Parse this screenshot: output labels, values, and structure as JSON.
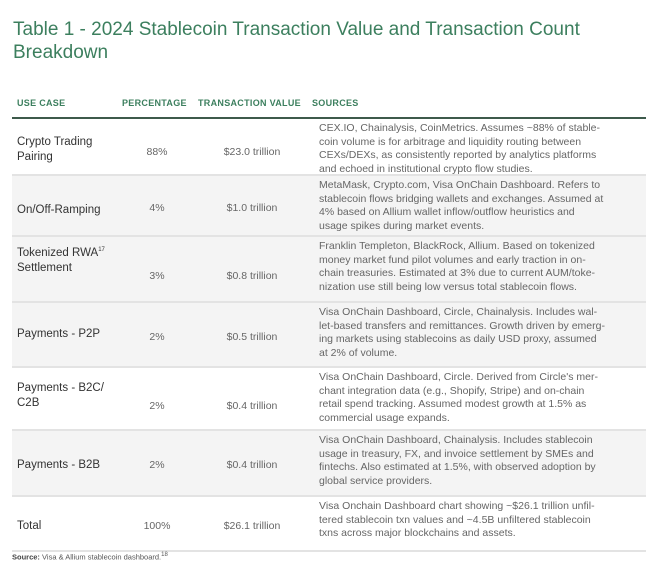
{
  "title": "Table 1 - 2024 Stablecoin Transaction Value and Transaction Count Breakdown",
  "headers": [
    "USE CASE",
    "PERCENTAGE",
    "TRANSACTION VALUE",
    "SOURCES"
  ],
  "rows": [
    {
      "use_case": "Crypto Trading\nPairing",
      "sup": "",
      "percentage": "88%",
      "value": "$23.0 trillion",
      "sources": "CEX.IO, Chainalysis, CoinMetrics. Assumes ~88% of stable-\ncoin volume is for arbitrage and liquidity routing between\nCEXs/DEXs, as consistently reported by analytics platforms\nand echoed in institutional crypto flow studies."
    },
    {
      "use_case": "On/Off-Ramping",
      "sup": "",
      "percentage": "4%",
      "value": "$1.0 trillion",
      "sources": "MetaMask, Crypto.com, Visa OnChain Dashboard. Refers to\nstablecoin flows bridging wallets and exchanges. Assumed at\n4% based on Allium wallet inflow/outflow heuristics and\nusage spikes during market events."
    },
    {
      "use_case": "Tokenized RWA",
      "sup": "17",
      "use_case2": "Settlement",
      "percentage": "3%",
      "value": "$0.8 trillion",
      "sources": "Franklin Templeton, BlackRock, Allium. Based on tokenized\nmoney market fund pilot volumes and early traction in on-\nchain treasuries. Estimated at 3% due to current AUM/toke-\nnization use still being low versus total stablecoin flows."
    },
    {
      "use_case": "Payments - P2P",
      "sup": "",
      "percentage": "2%",
      "value": "$0.5 trillion",
      "sources": "Visa OnChain Dashboard, Circle, Chainalysis. Includes wal-\nlet-based transfers and remittances. Growth driven by emerg-\ning markets using stablecoins as daily USD proxy, assumed\nat 2% of volume."
    },
    {
      "use_case": "Payments - B2C/\nC2B",
      "sup": "",
      "percentage": "2%",
      "value": "$0.4 trillion",
      "sources": "Visa OnChain Dashboard, Circle. Derived from Circle's mer-\nchant integration data (e.g., Shopify, Stripe) and on-chain\nretail spend tracking. Assumed modest growth at 1.5% as\ncommercial usage expands."
    },
    {
      "use_case": "Payments - B2B",
      "sup": "",
      "percentage": "2%",
      "value": "$0.4 trillion",
      "sources": "Visa OnChain Dashboard, Chainalysis. Includes stablecoin\nusage in treasury, FX, and invoice settlement by SMEs and\nfintechs. Also estimated at 1.5%, with observed adoption by\nglobal service providers."
    },
    {
      "use_case": "Total",
      "sup": "",
      "percentage": "100%",
      "value": "$26.1 trillion",
      "sources": "Visa Onchain Dashboard chart showing ~$26.1 trillion unfil-\ntered stablecoin txn values and ~4.5B unfiltered stablecoin\ntxns across major blockchains and assets."
    }
  ],
  "source_label": "Source:",
  "source_text": "Visa & Allium stablecoin dashboard.",
  "source_sup": "18",
  "colors": {
    "accent": "#3c7f5e",
    "rule": "#3d5a4b"
  }
}
